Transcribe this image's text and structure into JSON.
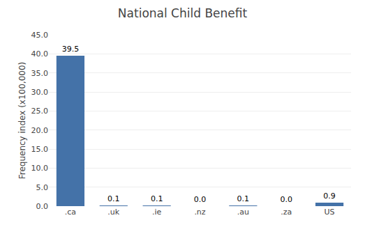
{
  "chart_data": {
    "type": "bar",
    "title": "National Child Benefit",
    "categories": [
      ".ca",
      ".uk",
      ".ie",
      ".nz",
      ".au",
      ".za",
      "US"
    ],
    "values": [
      39.5,
      0.1,
      0.1,
      0.0,
      0.1,
      0.0,
      0.9
    ],
    "value_labels": [
      "39.5",
      "0.1",
      "0.1",
      "0.0",
      "0.1",
      "0.0",
      "0.9"
    ],
    "data_labels": true,
    "color": "#4472a8",
    "ylabel": "Frequency index (x100,000)",
    "ylim": [
      0,
      45
    ],
    "yticks": [
      {
        "value": 0,
        "label": "0.0"
      },
      {
        "value": 5,
        "label": "5.0"
      },
      {
        "value": 10,
        "label": "10.0"
      },
      {
        "value": 15,
        "label": "15.0"
      },
      {
        "value": 20,
        "label": "20.0"
      },
      {
        "value": 25,
        "label": "25.0"
      },
      {
        "value": 30,
        "label": "30.0"
      },
      {
        "value": 35,
        "label": "35.0"
      },
      {
        "value": 40,
        "label": "40.0"
      },
      {
        "value": 45,
        "label": "45.0"
      }
    ],
    "grid": true
  }
}
